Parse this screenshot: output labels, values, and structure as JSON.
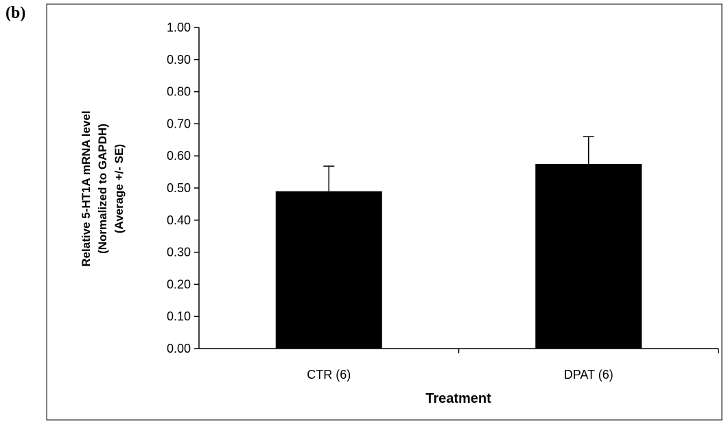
{
  "panel_label": "(b)",
  "chart_data": {
    "type": "bar",
    "categories": [
      "CTR (6)",
      "DPAT (6)"
    ],
    "values": [
      0.49,
      0.575
    ],
    "error_bars": [
      0.078,
      0.085
    ],
    "xlabel": "Treatment",
    "ylabel_lines": [
      "Relative 5-HT1A mRNA level",
      "(Normalized to GAPDH)",
      "(Average +/- SE)"
    ],
    "ylim": [
      0,
      1.0
    ],
    "yticks": [
      "0.00",
      "0.10",
      "0.20",
      "0.30",
      "0.40",
      "0.50",
      "0.60",
      "0.70",
      "0.80",
      "0.90",
      "1.00"
    ],
    "grid": false,
    "legend": "none",
    "bar_color": "#000000"
  }
}
